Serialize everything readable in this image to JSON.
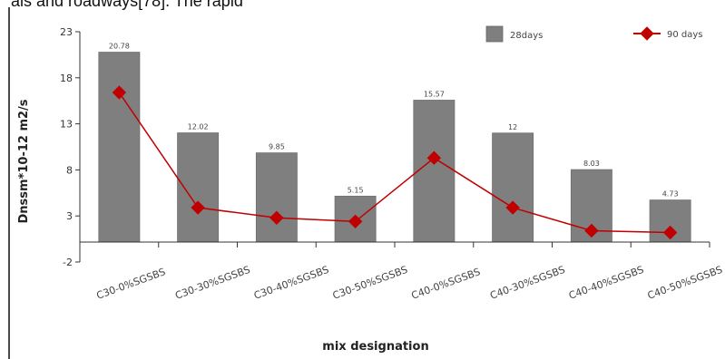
{
  "page": {
    "clipped_text": "als  and  roadways[78].  The  rapid"
  },
  "chart_data": {
    "type": "bar",
    "categories": [
      "C30-0%SGSBS",
      "C30-30%SGSBS",
      "C30-40%SGSBS",
      "C30-50%SGSBS",
      "C40-0%SGSBS",
      "C40-30%SGSBS",
      "C40-40%SGSBS",
      "C40-50%SGSBS"
    ],
    "series": [
      {
        "name": "28days",
        "type": "bar",
        "color": "#7f7f7f",
        "values": [
          20.78,
          12.02,
          9.85,
          5.15,
          15.57,
          12,
          8.03,
          4.73
        ],
        "data_labels": [
          "20.78",
          "12.02",
          "9.85",
          "5.15",
          "15.57",
          "12",
          "8.03",
          "4.73"
        ]
      },
      {
        "name": "90 days",
        "type": "line",
        "color": "#c00000",
        "marker": "diamond",
        "values": [
          16.4,
          3.9,
          2.8,
          2.4,
          9.3,
          3.9,
          1.4,
          1.2
        ]
      }
    ],
    "ylabel": "Dnssm*10-12 m2/s",
    "xlabel": "mix designation",
    "ylim": [
      -2,
      23
    ],
    "y_ticks": [
      -2,
      3,
      8,
      13,
      18,
      23
    ],
    "y_tick_labels": [
      "-2",
      "3",
      "8",
      "13",
      "18",
      "23"
    ],
    "grid": false,
    "legend_position": "top-right"
  }
}
